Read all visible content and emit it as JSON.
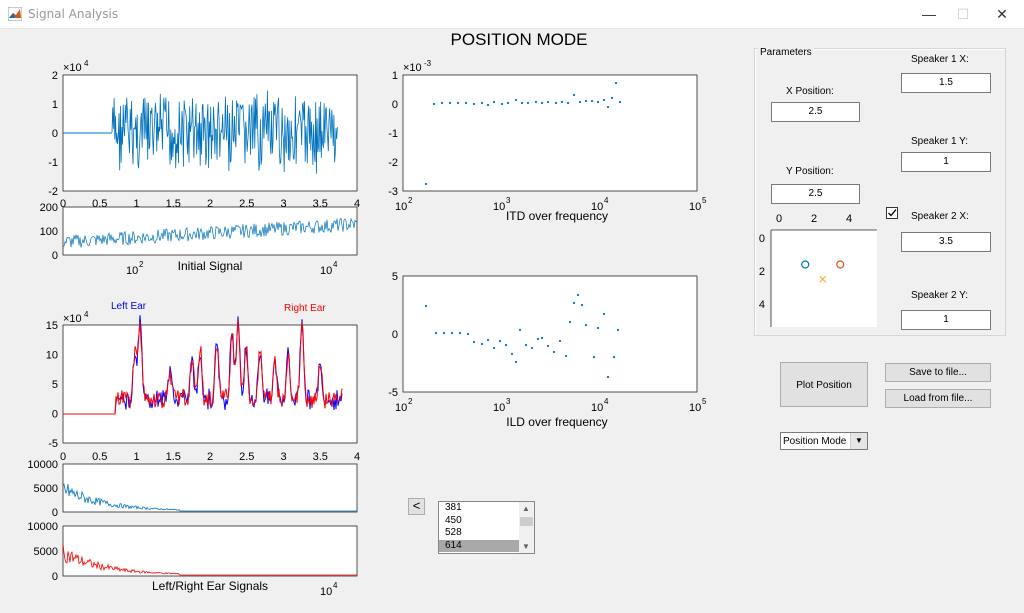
{
  "window": {
    "title": "Signal Analysis",
    "minimize": "—",
    "maximize": "☐",
    "close": "✕"
  },
  "page_title": "POSITION MODE",
  "plots": {
    "initial_signal": {
      "exponent": "×10",
      "exp_power": "4",
      "yticks": [
        "2",
        "1",
        "0",
        "-1",
        "-2"
      ],
      "xticks": [
        "0",
        "0.5",
        "1",
        "1.5",
        "2",
        "2.5",
        "3",
        "3.5",
        "4"
      ]
    },
    "initial_spectrum": {
      "yticks": [
        "200",
        "100",
        "0"
      ],
      "xticks": [
        "10",
        "10"
      ],
      "xtick_powers": [
        "2",
        "4"
      ],
      "xlabel": "Initial Signal"
    },
    "ears": {
      "left_label": "Left Ear",
      "right_label": "Right Ear",
      "exponent": "×10",
      "exp_power": "4",
      "yticks": [
        "15",
        "10",
        "5",
        "0",
        "-5"
      ],
      "xticks": [
        "0",
        "0.5",
        "1",
        "1.5",
        "2",
        "2.5",
        "3",
        "3.5",
        "4"
      ]
    },
    "left_spectrum": {
      "yticks": [
        "10000",
        "5000",
        "0"
      ]
    },
    "right_spectrum": {
      "yticks": [
        "10000",
        "5000",
        "0"
      ],
      "xlabel": "Left/Right Ear Signals",
      "xtick": "10",
      "xtick_power": "4"
    },
    "itd": {
      "exponent": "×10",
      "exp_power": "-3",
      "yticks": [
        "1",
        "0",
        "-1",
        "-2",
        "-3"
      ],
      "xticks": [
        "10",
        "10",
        "10",
        "10"
      ],
      "xtick_powers": [
        "2",
        "3",
        "4",
        "5"
      ],
      "xlabel": "ITD over frequency"
    },
    "ild": {
      "yticks": [
        "5",
        "0",
        "-5"
      ],
      "xticks": [
        "10",
        "10",
        "10",
        "10"
      ],
      "xtick_powers": [
        "2",
        "3",
        "4",
        "5"
      ],
      "xlabel": "ILD over frequency"
    },
    "position": {
      "xticks": [
        "0",
        "2",
        "4"
      ],
      "yticks": [
        "0",
        "2",
        "4"
      ]
    }
  },
  "parameters": {
    "title": "Parameters",
    "x_position_label": "X Position:",
    "x_position_value": "2.5",
    "y_position_label": "Y Position:",
    "y_position_value": "2.5",
    "speaker1_x_label": "Speaker 1 X:",
    "speaker1_x_value": "1.5",
    "speaker1_y_label": "Speaker 1 Y:",
    "speaker1_y_value": "1",
    "speaker2_x_label": "Speaker 2 X:",
    "speaker2_x_value": "3.5",
    "speaker2_y_label": "Speaker 2 Y:",
    "speaker2_y_value": "1",
    "checkbox_checked": true
  },
  "buttons": {
    "plot_position": "Plot Position",
    "save": "Save to file...",
    "load": "Load from file...",
    "prev": "<"
  },
  "mode_select": {
    "value": "Position Mode"
  },
  "listbox": {
    "items": [
      "381",
      "450",
      "528",
      "614"
    ],
    "selected_index": 3
  },
  "colors": {
    "signal": "#0072bd",
    "left": "#0000ff",
    "right": "#ff0000",
    "speaker1": "#0072bd",
    "speaker2": "#d95319",
    "listener": "#edb120"
  }
}
